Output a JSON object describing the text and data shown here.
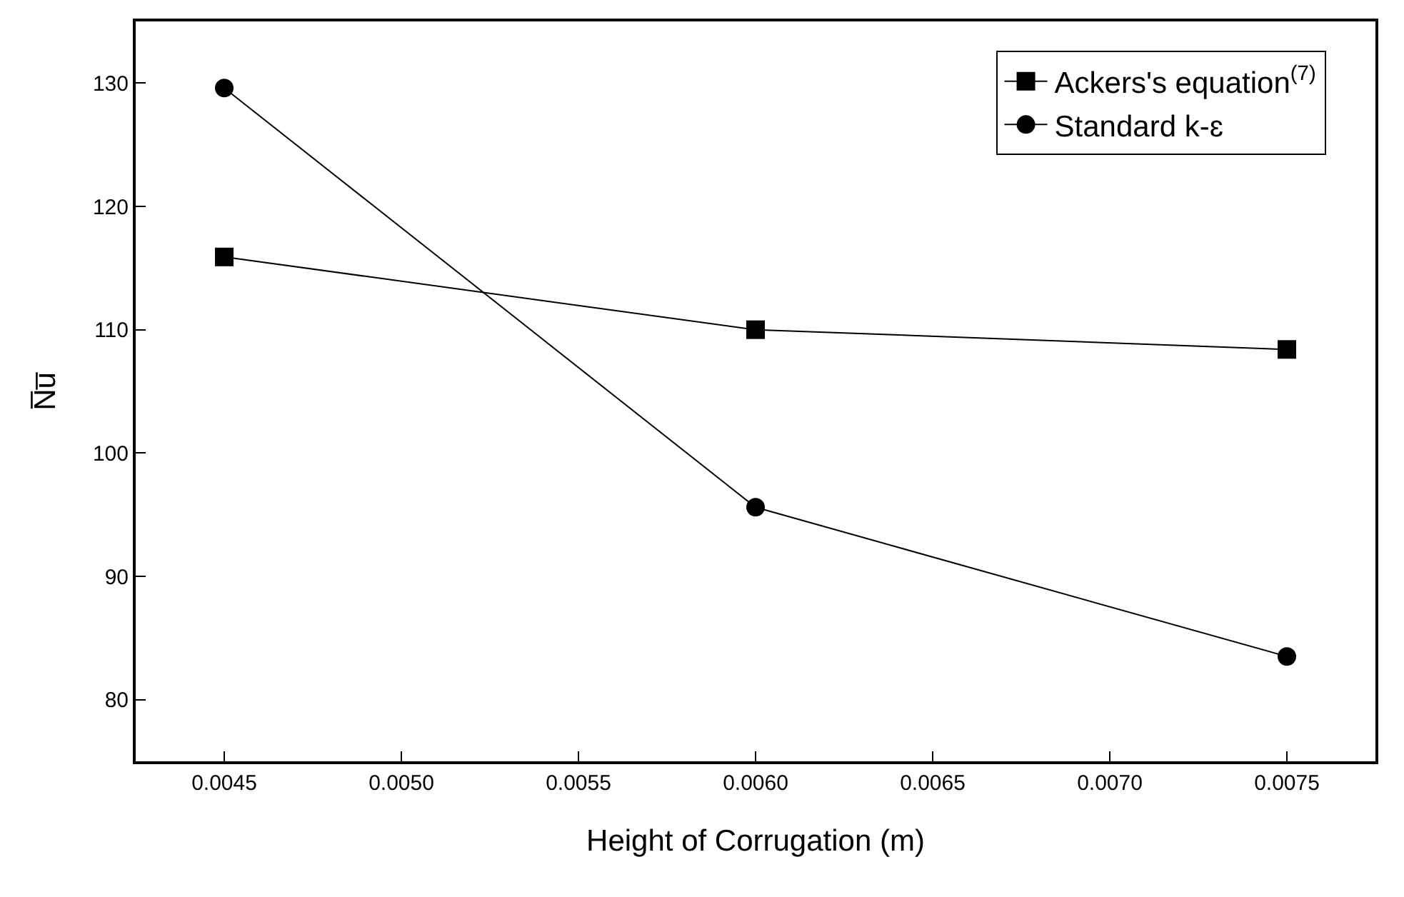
{
  "chart_data": {
    "type": "line",
    "xlabel": "Height of Corrugation (m)",
    "ylabel": "N̅u̅",
    "x": [
      0.0045,
      0.006,
      0.0075
    ],
    "series": [
      {
        "name": "Ackers's equation$^{(7)}$",
        "color": "#000000",
        "marker": "square",
        "values": [
          115.9,
          110.0,
          108.4
        ]
      },
      {
        "name": "Standard k-ɛ",
        "color": "#000000",
        "marker": "circle",
        "values": [
          129.6,
          95.6,
          83.5
        ]
      }
    ],
    "xlim": [
      0.00425,
      0.00775
    ],
    "xticks": [
      0.0045,
      {
        "value": 0.005,
        "label": "0.0050"
      },
      0.0055,
      {
        "value": 0.006,
        "label": "0.0060"
      },
      0.0065,
      {
        "value": 0.007,
        "label": "0.0070"
      },
      0.0075
    ],
    "ylim": [
      75,
      135
    ],
    "yticks": [
      80,
      90,
      100,
      110,
      120,
      130
    ],
    "legend": "top right",
    "line_style": "solid"
  }
}
